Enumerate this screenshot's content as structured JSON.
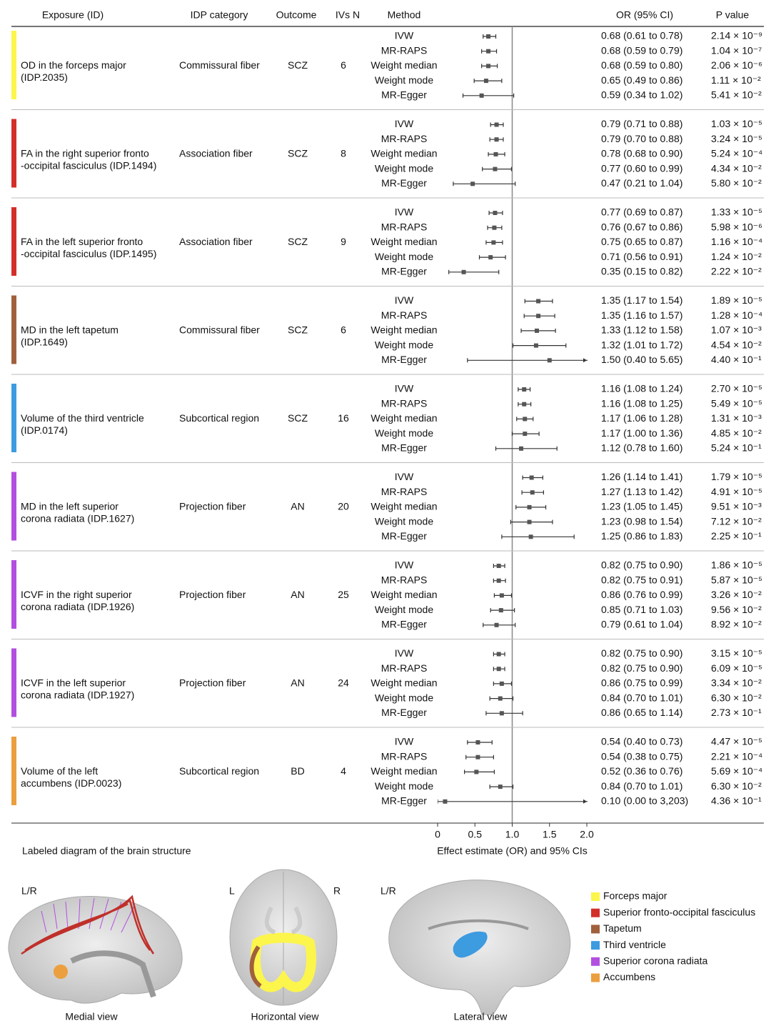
{
  "chart_data": {
    "type": "forest",
    "columns": [
      "Exposure (ID)",
      "IDP category",
      "Outcome",
      "IVs N",
      "Method",
      "OR (95% CI)",
      "P value"
    ],
    "methods": [
      "IVW",
      "MR-RAPS",
      "Weight median",
      "Weight mode",
      "MR-Egger"
    ],
    "x_label": "Effect estimate (OR) and 95% CIs",
    "xlim": [
      0,
      2
    ],
    "xticks": [
      0,
      0.5,
      {
        "value": 1,
        "label": "1.0"
      },
      1.5,
      {
        "value": 2,
        "label": "2.0"
      }
    ],
    "reference_line": 1,
    "groups": [
      {
        "exposure": [
          "OD in the forceps major",
          "(IDP.2035)"
        ],
        "category": "Commissural fiber",
        "outcome": "SCZ",
        "n": 6,
        "color": "#fcf54c",
        "or": [
          0.68,
          0.68,
          0.68,
          0.65,
          0.59
        ],
        "lower": [
          0.61,
          0.59,
          0.59,
          0.49,
          0.34
        ],
        "upper": [
          0.78,
          0.79,
          0.8,
          0.86,
          1.02
        ],
        "ci_labels": [
          "0.68 (0.61 to 0.78)",
          "0.68 (0.59 to 0.79)",
          "0.68 (0.59 to 0.80)",
          "0.65 (0.49 to 0.86)",
          "0.59 (0.34 to 1.02)"
        ],
        "p_labels": [
          "2.14 × 10⁻⁹",
          "1.04 × 10⁻⁷",
          "2.06 × 10⁻⁶",
          "1.11 × 10⁻²",
          "5.41 × 10⁻²"
        ],
        "p_colors": [
          "#d42a20",
          "#d42a20",
          "#d42a20",
          "#111111",
          "#111111"
        ]
      },
      {
        "exposure": [
          "FA in the right superior fronto",
          "-occipital fasciculus (IDP.1494)"
        ],
        "category": "Association fiber",
        "outcome": "SCZ",
        "n": 8,
        "color": "#d32f2a",
        "or": [
          0.79,
          0.79,
          0.78,
          0.77,
          0.47
        ],
        "lower": [
          0.71,
          0.7,
          0.68,
          0.6,
          0.21
        ],
        "upper": [
          0.88,
          0.88,
          0.9,
          0.99,
          1.04
        ],
        "ci_labels": [
          "0.79 (0.71 to 0.88)",
          "0.79 (0.70 to 0.88)",
          "0.78 (0.68 to 0.90)",
          "0.77 (0.60 to 0.99)",
          "0.47 (0.21 to 1.04)"
        ],
        "p_labels": [
          "1.03 × 10⁻⁵",
          "3.24 × 10⁻⁵",
          "5.24 × 10⁻⁴",
          "4.34 × 10⁻²",
          "5.80 × 10⁻²"
        ],
        "p_colors": [
          "#d42a20",
          "#d42a20",
          "#111111",
          "#111111",
          "#111111"
        ]
      },
      {
        "exposure": [
          "FA in the left superior fronto",
          "-occipital fasciculus (IDP.1495)"
        ],
        "category": "Association fiber",
        "outcome": "SCZ",
        "n": 9,
        "color": "#d32f2a",
        "or": [
          0.77,
          0.76,
          0.75,
          0.71,
          0.35
        ],
        "lower": [
          0.69,
          0.67,
          0.65,
          0.56,
          0.15
        ],
        "upper": [
          0.87,
          0.86,
          0.87,
          0.91,
          0.82
        ],
        "ci_labels": [
          "0.77 (0.69 to 0.87)",
          "0.76 (0.67 to 0.86)",
          "0.75 (0.65 to 0.87)",
          "0.71 (0.56 to 0.91)",
          "0.35 (0.15 to 0.82)"
        ],
        "p_labels": [
          "1.33 × 10⁻⁵",
          "5.98 × 10⁻⁶",
          "1.16 × 10⁻⁴",
          "1.24 × 10⁻²",
          "2.22 × 10⁻²"
        ],
        "p_colors": [
          "#d42a20",
          "#d42a20",
          "#111111",
          "#111111",
          "#111111"
        ]
      },
      {
        "exposure": [
          "MD in the left tapetum",
          "(IDP.1649)"
        ],
        "category": "Commissural fiber",
        "outcome": "SCZ",
        "n": 6,
        "color": "#a0603c",
        "or": [
          1.35,
          1.35,
          1.33,
          1.32,
          1.5
        ],
        "lower": [
          1.17,
          1.16,
          1.12,
          1.01,
          0.4
        ],
        "upper": [
          1.54,
          1.57,
          1.58,
          1.72,
          5.65
        ],
        "ci_labels": [
          "1.35 (1.17 to 1.54)",
          "1.35 (1.16 to 1.57)",
          "1.33 (1.12 to 1.58)",
          "1.32 (1.01 to 1.72)",
          "1.50 (0.40 to 5.65)"
        ],
        "p_labels": [
          "1.89 × 10⁻⁵",
          "1.28 × 10⁻⁴",
          "1.07 × 10⁻³",
          "4.54 × 10⁻²",
          "4.40 × 10⁻¹"
        ],
        "p_colors": [
          "#d42a20",
          "#111111",
          "#111111",
          "#111111",
          "#111111"
        ]
      },
      {
        "exposure": [
          "Volume of the third ventricle",
          "(IDP.0174)"
        ],
        "category": "Subcortical region",
        "outcome": "SCZ",
        "n": 16,
        "color": "#3d9be0",
        "or": [
          1.16,
          1.16,
          1.17,
          1.17,
          1.12
        ],
        "lower": [
          1.08,
          1.08,
          1.06,
          1.0,
          0.78
        ],
        "upper": [
          1.24,
          1.25,
          1.28,
          1.36,
          1.6
        ],
        "ci_labels": [
          "1.16 (1.08 to 1.24)",
          "1.16 (1.08 to 1.25)",
          "1.17 (1.06 to 1.28)",
          "1.17 (1.00 to 1.36)",
          "1.12 (0.78 to 1.60)"
        ],
        "p_labels": [
          "2.70 × 10⁻⁵",
          "5.49 × 10⁻⁵",
          "1.31 × 10⁻³",
          "4.85 × 10⁻²",
          "5.24 × 10⁻¹"
        ],
        "p_colors": [
          "#d42a20",
          "#111111",
          "#111111",
          "#111111",
          "#111111"
        ]
      },
      {
        "exposure": [
          "MD in the left superior",
          "corona radiata (IDP.1627)"
        ],
        "category": "Projection fiber",
        "outcome": "AN",
        "n": 20,
        "color": "#b24fe0",
        "or": [
          1.26,
          1.27,
          1.23,
          1.23,
          1.25
        ],
        "lower": [
          1.14,
          1.13,
          1.05,
          0.98,
          0.86
        ],
        "upper": [
          1.41,
          1.42,
          1.45,
          1.54,
          1.83
        ],
        "ci_labels": [
          "1.26 (1.14 to 1.41)",
          "1.27 (1.13 to 1.42)",
          "1.23 (1.05 to 1.45)",
          "1.23 (0.98 to 1.54)",
          "1.25 (0.86 to 1.83)"
        ],
        "p_labels": [
          "1.79 × 10⁻⁵",
          "4.91 × 10⁻⁵",
          "9.51 × 10⁻³",
          "7.12 × 10⁻²",
          "2.25 × 10⁻¹"
        ],
        "p_colors": [
          "#d42a20",
          "#111111",
          "#111111",
          "#111111",
          "#111111"
        ]
      },
      {
        "exposure": [
          "ICVF in the right superior",
          "corona radiata (IDP.1926)"
        ],
        "category": "Projection fiber",
        "outcome": "AN",
        "n": 25,
        "color": "#b24fe0",
        "or": [
          0.82,
          0.82,
          0.86,
          0.85,
          0.79
        ],
        "lower": [
          0.75,
          0.75,
          0.76,
          0.71,
          0.61
        ],
        "upper": [
          0.9,
          0.91,
          0.99,
          1.03,
          1.04
        ],
        "ci_labels": [
          "0.82 (0.75 to 0.90)",
          "0.82 (0.75 to 0.91)",
          "0.86 (0.76 to 0.99)",
          "0.85 (0.71 to 1.03)",
          "0.79 (0.61 to 1.04)"
        ],
        "p_labels": [
          "1.86 × 10⁻⁵",
          "5.87 × 10⁻⁵",
          "3.26 × 10⁻²",
          "9.56 × 10⁻²",
          "8.92 × 10⁻²"
        ],
        "p_colors": [
          "#d42a20",
          "#111111",
          "#111111",
          "#111111",
          "#111111"
        ]
      },
      {
        "exposure": [
          "ICVF in the left superior",
          "corona radiata (IDP.1927)"
        ],
        "category": "Projection fiber",
        "outcome": "AN",
        "n": 24,
        "color": "#b24fe0",
        "or": [
          0.82,
          0.82,
          0.86,
          0.84,
          0.86
        ],
        "lower": [
          0.75,
          0.75,
          0.75,
          0.7,
          0.65
        ],
        "upper": [
          0.9,
          0.9,
          0.99,
          1.01,
          1.14
        ],
        "ci_labels": [
          "0.82 (0.75 to 0.90)",
          "0.82 (0.75 to 0.90)",
          "0.86 (0.75 to 0.99)",
          "0.84 (0.70 to 1.01)",
          "0.86 (0.65 to 1.14)"
        ],
        "p_labels": [
          "3.15 × 10⁻⁵",
          "6.09 × 10⁻⁵",
          "3.34 × 10⁻²",
          "6.30 × 10⁻²",
          "2.73 × 10⁻¹"
        ],
        "p_colors": [
          "#d42a20",
          "#111111",
          "#111111",
          "#111111",
          "#111111"
        ]
      },
      {
        "exposure": [
          "Volume of the left",
          "accumbens (IDP.0023)"
        ],
        "category": "Subcortical region",
        "outcome": "BD",
        "n": 4,
        "color": "#eb9f3e",
        "or": [
          0.54,
          0.54,
          0.52,
          0.84,
          0.1
        ],
        "lower": [
          0.4,
          0.38,
          0.36,
          0.7,
          0.0
        ],
        "upper": [
          0.73,
          0.75,
          0.76,
          1.01,
          3203
        ],
        "ci_labels": [
          "0.54 (0.40 to 0.73)",
          "0.54 (0.38 to 0.75)",
          "0.52 (0.36 to 0.76)",
          "0.84 (0.70 to 1.01)",
          "0.10 (0.00 to 3,203)"
        ],
        "p_labels": [
          "4.47 × 10⁻⁵",
          "2.21 × 10⁻⁴",
          "5.69 × 10⁻⁴",
          "6.30 × 10⁻²",
          "4.36 × 10⁻¹"
        ],
        "p_colors": [
          "#d42a20",
          "#111111",
          "#111111",
          "#111111",
          "#111111"
        ]
      }
    ]
  },
  "diagram": {
    "title": "Labeled diagram of the brain structure",
    "views": [
      {
        "name": "Medial view",
        "side": "L/R"
      },
      {
        "name": "Horizontal view",
        "left": "L",
        "right": "R"
      },
      {
        "name": "Lateral view",
        "side": "L/R"
      }
    ],
    "legend": [
      {
        "name": "Forceps major",
        "color": "#fcf54c"
      },
      {
        "name": "Superior fronto-occipital fasciculus",
        "color": "#d32f2a"
      },
      {
        "name": "Tapetum",
        "color": "#a0603c"
      },
      {
        "name": "Third ventricle",
        "color": "#3d9be0"
      },
      {
        "name": "Superior corona radiata",
        "color": "#b24fe0"
      },
      {
        "name": "Accumbens",
        "color": "#eb9f3e"
      }
    ]
  }
}
